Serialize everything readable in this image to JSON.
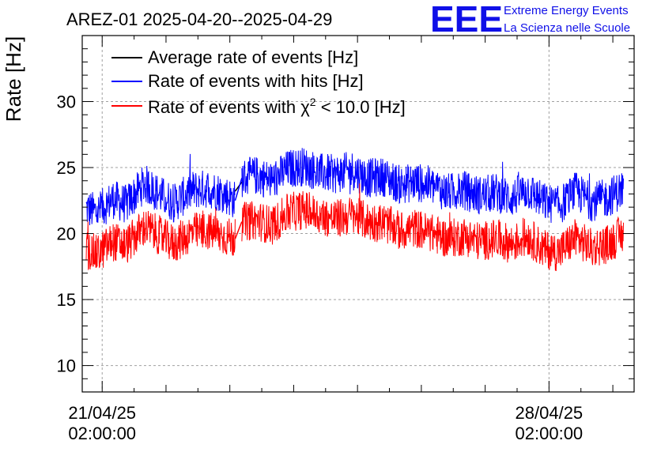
{
  "header": {
    "title": "AREZ-01 2025-04-20--2025-04-29",
    "brand": "EEE",
    "brand_line1": "Extreme Energy Events",
    "brand_line2": "La Scienza nelle Scuole"
  },
  "colors": {
    "average": "#000000",
    "hits": "#0000ff",
    "chi2": "#ff0000"
  },
  "chart_data": {
    "type": "line",
    "ylabel": "Rate [Hz]",
    "xlabel": "",
    "ylim": [
      8,
      35
    ],
    "xlim": [
      "2025-04-20T18:30:00",
      "2025-04-29T10:00:00"
    ],
    "yticks": [
      10,
      15,
      20,
      25,
      30
    ],
    "xticks": [
      {
        "at": "2025-04-21T02:00:00",
        "line1": "21/04/25",
        "line2": "02:00:00"
      },
      {
        "at": "2025-04-28T02:00:00",
        "line1": "28/04/25",
        "line2": "02:00:00"
      }
    ],
    "grid": true,
    "legend_position": "top-left",
    "series": [
      {
        "name": "Average rate of events [Hz]",
        "color": "#000000",
        "noise": 0,
        "x": [
          "2025-04-23T04:00:00",
          "2025-04-23T06:30:00"
        ],
        "y": [
          23.2,
          23.9
        ]
      },
      {
        "name": "Rate of events with hits [Hz]",
        "color": "#0000ff",
        "noise": 1.5,
        "x": [
          "2025-04-20T20:00:00",
          "2025-04-21T00:00:00",
          "2025-04-21T06:00:00",
          "2025-04-21T11:00:00",
          "2025-04-21T18:00:00",
          "2025-04-22T00:00:00",
          "2025-04-22T05:00:00",
          "2025-04-22T12:00:00",
          "2025-04-22T18:00:00",
          "2025-04-23T00:00:00",
          "2025-04-23T04:00:00",
          "2025-04-23T06:30:00",
          "2025-04-23T12:00:00",
          "2025-04-23T18:00:00",
          "2025-04-24T00:00:00",
          "2025-04-24T06:00:00",
          "2025-04-24T12:00:00",
          "2025-04-24T18:00:00",
          "2025-04-25T00:00:00",
          "2025-04-25T06:00:00",
          "2025-04-25T12:00:00",
          "2025-04-25T18:00:00",
          "2025-04-26T00:00:00",
          "2025-04-26T06:00:00",
          "2025-04-26T12:00:00",
          "2025-04-26T18:00:00",
          "2025-04-27T00:00:00",
          "2025-04-27T06:00:00",
          "2025-04-27T12:00:00",
          "2025-04-27T18:00:00",
          "2025-04-28T00:00:00",
          "2025-04-28T06:00:00",
          "2025-04-28T12:00:00",
          "2025-04-28T18:00:00",
          "2025-04-29T00:00:00",
          "2025-04-29T06:00:00"
        ],
        "y": [
          21.9,
          21.6,
          22.6,
          22.2,
          23.8,
          22.9,
          22.3,
          23.3,
          23.4,
          23.0,
          22.5,
          24.2,
          24.4,
          24.0,
          24.9,
          25.1,
          24.6,
          24.5,
          24.8,
          24.2,
          24.3,
          23.7,
          23.9,
          23.6,
          23.1,
          23.3,
          22.9,
          23.1,
          22.7,
          23.3,
          22.4,
          22.1,
          23.2,
          22.4,
          22.7,
          23.4
        ]
      },
      {
        "name": "Rate of events with χ² < 10.0 [Hz]",
        "color": "#ff0000",
        "noise": 1.5,
        "x": [
          "2025-04-20T20:00:00",
          "2025-04-21T00:00:00",
          "2025-04-21T06:00:00",
          "2025-04-21T11:00:00",
          "2025-04-21T18:00:00",
          "2025-04-22T00:00:00",
          "2025-04-22T05:00:00",
          "2025-04-22T12:00:00",
          "2025-04-22T18:00:00",
          "2025-04-23T00:00:00",
          "2025-04-23T04:00:00",
          "2025-04-23T06:30:00",
          "2025-04-23T12:00:00",
          "2025-04-23T18:00:00",
          "2025-04-24T00:00:00",
          "2025-04-24T06:00:00",
          "2025-04-24T12:00:00",
          "2025-04-24T18:00:00",
          "2025-04-25T00:00:00",
          "2025-04-25T06:00:00",
          "2025-04-25T12:00:00",
          "2025-04-25T18:00:00",
          "2025-04-26T00:00:00",
          "2025-04-26T06:00:00",
          "2025-04-26T12:00:00",
          "2025-04-26T18:00:00",
          "2025-04-27T00:00:00",
          "2025-04-27T06:00:00",
          "2025-04-27T12:00:00",
          "2025-04-27T18:00:00",
          "2025-04-28T00:00:00",
          "2025-04-28T06:00:00",
          "2025-04-28T12:00:00",
          "2025-04-28T18:00:00",
          "2025-04-29T00:00:00",
          "2025-04-29T06:00:00"
        ],
        "y": [
          18.8,
          18.4,
          19.4,
          19.1,
          20.5,
          19.8,
          19.2,
          20.1,
          20.2,
          19.8,
          19.6,
          20.9,
          21.0,
          20.6,
          21.6,
          21.8,
          21.3,
          21.1,
          21.4,
          20.9,
          20.8,
          20.2,
          20.4,
          20.0,
          19.6,
          19.8,
          19.4,
          19.6,
          19.2,
          19.8,
          18.8,
          18.6,
          19.7,
          18.9,
          19.2,
          20.0
        ]
      }
    ]
  },
  "legend_chi": {
    "prefix": "Rate of events with ",
    "symbol": "χ",
    "sup": "2",
    "suffix": " < 10.0 [Hz]"
  }
}
